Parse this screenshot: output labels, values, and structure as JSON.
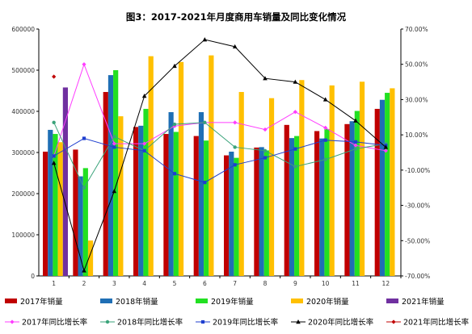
{
  "chart_data": {
    "type": "bar",
    "title": "图3：2017-2021年月度商用车销量及同比变化情况",
    "categories": [
      "1",
      "2",
      "3",
      "4",
      "5",
      "6",
      "7",
      "8",
      "9",
      "10",
      "11",
      "12"
    ],
    "ylim_left": [
      0,
      600000
    ],
    "yticks_left": [
      "0",
      "100000",
      "200000",
      "300000",
      "400000",
      "500000",
      "600000"
    ],
    "ylim_right": [
      -70,
      70
    ],
    "yticks_right": [
      "70.00%",
      "50.00%",
      "30.00%",
      "10.00%",
      "-10.00%",
      "-30.00%",
      "-50.00%",
      "-70.00%"
    ],
    "grid": false,
    "legend_position": "bottom",
    "bar_series": [
      {
        "name": "2017年销量",
        "color": "#c00000",
        "values": [
          302000,
          307000,
          447000,
          362000,
          345000,
          340000,
          293000,
          312000,
          367000,
          352000,
          369000,
          406000
        ]
      },
      {
        "name": "2018年销量",
        "color": "#1f6fb5",
        "values": [
          355000,
          242000,
          488000,
          365000,
          398000,
          398000,
          302000,
          313000,
          335000,
          334000,
          376000,
          428000
        ]
      },
      {
        "name": "2019年销量",
        "color": "#22e022",
        "values": [
          345000,
          262000,
          500000,
          406000,
          350000,
          329000,
          287000,
          305000,
          340000,
          357000,
          401000,
          445000
        ]
      },
      {
        "name": "2020年销量",
        "color": "#ffc000",
        "values": [
          325000,
          86000,
          388000,
          534000,
          520000,
          536000,
          447000,
          432000,
          476000,
          463000,
          472000,
          456000
        ]
      },
      {
        "name": "2021年销量",
        "color": "#7030a0",
        "values": [
          458000,
          null,
          null,
          null,
          null,
          null,
          null,
          null,
          null,
          null,
          null,
          null
        ]
      }
    ],
    "line_series": [
      {
        "name": "2017年同比增长率",
        "color": "#ff3cff",
        "marker": "diamond",
        "values": [
          -2,
          50,
          5,
          5,
          15,
          17,
          17,
          13,
          23,
          14,
          4,
          1
        ]
      },
      {
        "name": "2018年同比增长率",
        "color": "#3aa37a",
        "marker": "circle",
        "values": [
          17,
          -20,
          9,
          1,
          16,
          17,
          3,
          1,
          -8,
          -4,
          2,
          5
        ]
      },
      {
        "name": "2019年同比增长率",
        "color": "#1f3fcf",
        "marker": "square",
        "values": [
          -2,
          8,
          3,
          1,
          -12,
          -17,
          -7,
          -3,
          2,
          7,
          6,
          4
        ]
      },
      {
        "name": "2020年同比增长率",
        "color": "#000000",
        "marker": "triangle",
        "values": [
          -6,
          -67,
          -22,
          32,
          49,
          64,
          60,
          42,
          40,
          30,
          18,
          3
        ]
      },
      {
        "name": "2021年同比增长率",
        "color": "#c00000",
        "marker": "diamond",
        "values": [
          43,
          null,
          null,
          null,
          null,
          null,
          null,
          null,
          null,
          null,
          null,
          null
        ]
      }
    ]
  }
}
